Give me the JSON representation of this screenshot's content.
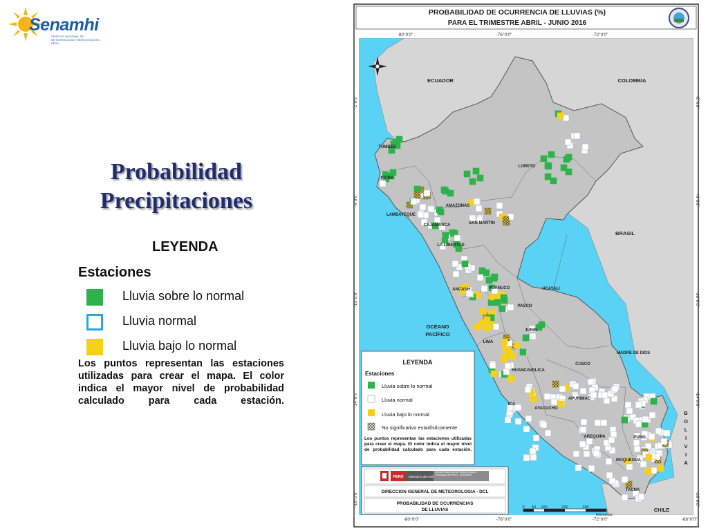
{
  "logo": {
    "brand": "Senamhi",
    "subtitle": "SERVICIO NACIONAL DE METEOROLOGIA E HIDROLOGIA DEL PERU"
  },
  "slide": {
    "title_line1": "Probabilidad",
    "title_line2": "Precipitaciones",
    "legend_title": "LEYENDA",
    "legend_subtitle": "Estaciones",
    "legend_items": [
      {
        "label": "Lluvia sobre lo normal",
        "color": "#2db34a"
      },
      {
        "label": "Lluvia normal",
        "color": "#ffffff",
        "border": "#2aa6e0"
      },
      {
        "label": "Lluvia bajo lo normal",
        "color": "#f7d117"
      }
    ],
    "note": "Los puntos representan las estaciones utilizadas para crear el mapa. El color indica el mayor nivel de probabilidad calculado para cada estación."
  },
  "map": {
    "title_line1": "PROBABILIDAD DE OCURRENCIA DE LLUVIAS (%)",
    "title_line2": "PARA EL TRIMESTRE ABRIL - JUNIO 2016",
    "lon_labels": [
      "-80°0'0\"",
      "-76°0'0\"",
      "-72°0'0\"",
      "-68°0'0\""
    ],
    "lat_labels": [
      "-2°0'0\"",
      "-6°0'0\"",
      "-10°0'0\"",
      "-14°0'0\"",
      "-18°0'0\""
    ],
    "countries": [
      "ECUADOR",
      "COLOMBIA",
      "BRASIL",
      "CHILE"
    ],
    "bolivia_letters": [
      "B",
      "O",
      "L",
      "I",
      "V",
      "I",
      "A"
    ],
    "ocean_line1": "OCÉANO",
    "ocean_line2": "PACÍFICO",
    "regions": [
      "TUMBES",
      "PIURA",
      "LAMBAYEQUE",
      "CAJAMARCA",
      "AMAZONAS",
      "SAN MARTIN",
      "LA LIBERTAD",
      "LORETO",
      "ANCASH",
      "HUANUCO",
      "UCAYALI",
      "PASCO",
      "JUNIN",
      "LIMA",
      "HUANCAVELICA",
      "ICA",
      "AYACUCHO",
      "APURIMAC",
      "CUSCO",
      "MADRE DE DIOS",
      "PUNO",
      "AREQUIPA",
      "MOQUEGUA",
      "TACNA"
    ],
    "legend": {
      "title": "LEYENDA",
      "subtitle": "Estaciones",
      "items": [
        "Lluvia sobre lo normal",
        "Lluvia normal",
        "Lluvia bajo lo normal",
        "No significativo estadísticamente"
      ],
      "note": "Los puntos representan las estaciones utilizadas para crear el mapa. El color indica el mayor nivel de probabilidad calculado para cada estación."
    },
    "footer": {
      "ministry_country": "PERÚ",
      "ministry_name": "Ministerio del Ambiente",
      "agency": "Servicio Nacional de Meteorología e Hidrología del Perú - SENAMHI",
      "direction": "DIRECCION GENERAL DE METEOROLOGIA - DCL",
      "product_line1": "PROBABILIDAD DE OCURRENCIAS",
      "product_line2": "DE LLUVIAS"
    },
    "scale": {
      "ticks": [
        "0",
        "50",
        "100",
        "200",
        "300"
      ],
      "unit": "Kilómetros"
    },
    "colors": {
      "above": "#2db34a",
      "normal": "#ffffff",
      "below": "#f7d117",
      "ocean": "#5ad2f5",
      "land": "#d6d6d6",
      "peru": "#c4c4c4"
    }
  }
}
